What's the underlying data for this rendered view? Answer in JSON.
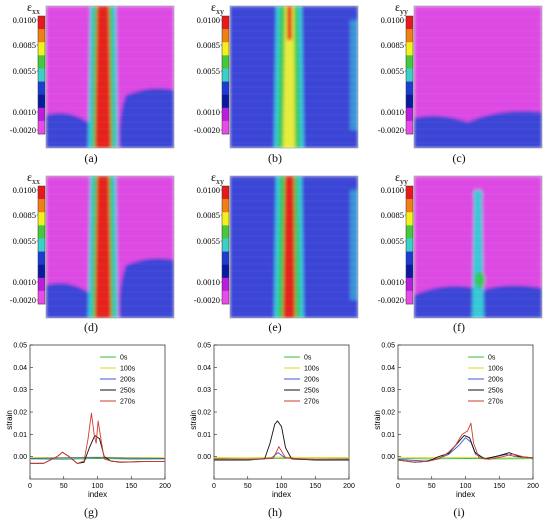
{
  "strain_maps": [
    {
      "caption": "(a)",
      "symbol": "ε",
      "subscript": "xx",
      "field": "xx",
      "stage": 1,
      "colorbar_ticks": [
        "0.0100",
        "0.0085",
        "0.0055",
        "0.0010",
        "-0.0020"
      ]
    },
    {
      "caption": "(b)",
      "symbol": "ε",
      "subscript": "xy",
      "field": "xy",
      "stage": 1,
      "colorbar_ticks": [
        "0.0100",
        "0.0085",
        "0.0055",
        "0.0010",
        "-0.0020"
      ]
    },
    {
      "caption": "(c)",
      "symbol": "ε",
      "subscript": "yy",
      "field": "yy",
      "stage": 1,
      "colorbar_ticks": [
        "0.0100",
        "0.0085",
        "0.0055",
        "0.0010",
        "-0.0020"
      ]
    },
    {
      "caption": "(d)",
      "symbol": "ε",
      "subscript": "xx",
      "field": "xx",
      "stage": 2,
      "colorbar_ticks": [
        "0.0100",
        "0.0085",
        "0.0055",
        "0.0010",
        "-0.0020"
      ]
    },
    {
      "caption": "(e)",
      "symbol": "ε",
      "subscript": "xy",
      "field": "xy",
      "stage": 2,
      "colorbar_ticks": [
        "0.0100",
        "0.0085",
        "0.0055",
        "0.0010",
        "-0.0020"
      ]
    },
    {
      "caption": "(f)",
      "symbol": "ε",
      "subscript": "yy",
      "field": "yy",
      "stage": 2,
      "colorbar_ticks": [
        "0.0100",
        "0.0085",
        "0.0055",
        "0.0010",
        "-0.0020"
      ]
    }
  ],
  "colorbar_colors": [
    "#e8191c",
    "#f07f14",
    "#f4f01e",
    "#46c83c",
    "#3ccfc8",
    "#1e3cd2",
    "#0a1aa0",
    "#b81edb",
    "#e84ce8"
  ],
  "field_colors": {
    "background_magenta": "#dd4ae3",
    "background_blue": "#3a44d6",
    "band_red": "#e5201e",
    "band_yellow": "#e8ec3a",
    "band_green": "#34c857",
    "band_cyan": "#38c8d8"
  },
  "chart_data": [
    {
      "type": "line",
      "caption": "(g)",
      "ylabel": "strain",
      "xlabel": "index",
      "xlim": [
        0,
        200
      ],
      "ylim": [
        -0.01,
        0.05
      ],
      "xticks": [
        0,
        50,
        100,
        150,
        200
      ],
      "yticks": [
        {
          "value": 0.05,
          "label": "0.05"
        },
        {
          "value": 0.04,
          "label": "0.04"
        },
        {
          "value": 0.03,
          "label": "0.03"
        },
        {
          "value": 0.02,
          "label": "0.02"
        },
        {
          "value": 0.01,
          "label": "0.01"
        },
        {
          "value": 0.0,
          "label": "0.00"
        }
      ],
      "legend_position": "top-right",
      "series": [
        {
          "name": "0s",
          "color": "#3cb83c",
          "points": [
            [
              0,
              -0.001
            ],
            [
              50,
              -0.0012
            ],
            [
              100,
              -0.0008
            ],
            [
              150,
              -0.0011
            ],
            [
              200,
              -0.001
            ]
          ]
        },
        {
          "name": "100s",
          "color": "#e3d61e",
          "points": [
            [
              0,
              -0.0004
            ],
            [
              50,
              -0.0004
            ],
            [
              100,
              -0.0002
            ],
            [
              150,
              -0.0004
            ],
            [
              200,
              -0.0004
            ]
          ]
        },
        {
          "name": "200s",
          "color": "#3a58d8",
          "points": [
            [
              0,
              -0.0008
            ],
            [
              50,
              -0.0006
            ],
            [
              100,
              -0.0004
            ],
            [
              150,
              -0.0007
            ],
            [
              200,
              -0.0008
            ]
          ]
        },
        {
          "name": "250s",
          "color": "#111111",
          "points": [
            [
              0,
              -0.003
            ],
            [
              20,
              -0.003
            ],
            [
              40,
              0.0
            ],
            [
              48,
              0.002
            ],
            [
              58,
              0.0
            ],
            [
              70,
              -0.003
            ],
            [
              80,
              -0.0025
            ],
            [
              88,
              0.004
            ],
            [
              96,
              0.0095
            ],
            [
              103,
              0.008
            ],
            [
              110,
              0.0
            ],
            [
              120,
              -0.002
            ],
            [
              135,
              -0.0025
            ],
            [
              160,
              -0.0022
            ],
            [
              200,
              -0.0022
            ]
          ]
        },
        {
          "name": "270s",
          "color": "#d23c2e",
          "points": [
            [
              0,
              -0.003
            ],
            [
              20,
              -0.003
            ],
            [
              40,
              0.0
            ],
            [
              48,
              0.002
            ],
            [
              58,
              0.0
            ],
            [
              70,
              -0.003
            ],
            [
              80,
              -0.002
            ],
            [
              86,
              0.008
            ],
            [
              91,
              0.0195
            ],
            [
              95,
              0.01
            ],
            [
              98,
              0.006
            ],
            [
              101,
              0.016
            ],
            [
              105,
              0.008
            ],
            [
              110,
              -0.001
            ],
            [
              120,
              -0.002
            ],
            [
              140,
              -0.0025
            ],
            [
              170,
              -0.0022
            ],
            [
              200,
              -0.0022
            ]
          ]
        }
      ]
    },
    {
      "type": "line",
      "caption": "(h)",
      "ylabel": "strain",
      "xlabel": "index",
      "xlim": [
        0,
        200
      ],
      "ylim": [
        -0.01,
        0.05
      ],
      "xticks": [
        0,
        50,
        100,
        150,
        200
      ],
      "yticks": [
        {
          "value": 0.05,
          "label": "0.05"
        },
        {
          "value": 0.04,
          "label": "0.04"
        },
        {
          "value": 0.03,
          "label": "0.03"
        },
        {
          "value": 0.02,
          "label": "0.02"
        },
        {
          "value": 0.01,
          "label": "0.01"
        },
        {
          "value": 0.0,
          "label": "0.00"
        }
      ],
      "legend_position": "top-right",
      "series": [
        {
          "name": "0s",
          "color": "#3cb83c",
          "points": [
            [
              0,
              -0.0008
            ],
            [
              50,
              -0.001
            ],
            [
              100,
              -0.0007
            ],
            [
              150,
              -0.001
            ],
            [
              200,
              -0.0009
            ]
          ]
        },
        {
          "name": "100s",
          "color": "#e3d61e",
          "points": [
            [
              0,
              -0.0004
            ],
            [
              50,
              -0.0005
            ],
            [
              100,
              -0.0002
            ],
            [
              150,
              -0.0004
            ],
            [
              200,
              -0.0004
            ]
          ]
        },
        {
          "name": "200s",
          "color": "#3a58d8",
          "points": [
            [
              0,
              -0.0012
            ],
            [
              60,
              -0.0012
            ],
            [
              85,
              -0.0006
            ],
            [
              95,
              0.0018
            ],
            [
              105,
              -0.0005
            ],
            [
              140,
              -0.0012
            ],
            [
              200,
              -0.0012
            ]
          ]
        },
        {
          "name": "250s",
          "color": "#111111",
          "points": [
            [
              0,
              -0.0015
            ],
            [
              50,
              -0.0015
            ],
            [
              75,
              -0.001
            ],
            [
              83,
              0.006
            ],
            [
              90,
              0.0145
            ],
            [
              94,
              0.016
            ],
            [
              100,
              0.0135
            ],
            [
              106,
              0.004
            ],
            [
              115,
              -0.001
            ],
            [
              150,
              -0.0015
            ],
            [
              200,
              -0.0015
            ]
          ]
        },
        {
          "name": "270s",
          "color": "#d23c2e",
          "points": [
            [
              0,
              -0.0012
            ],
            [
              60,
              -0.0012
            ],
            [
              88,
              -0.0008
            ],
            [
              96,
              0.0045
            ],
            [
              100,
              0.0025
            ],
            [
              106,
              -0.0005
            ],
            [
              140,
              -0.0012
            ],
            [
              200,
              -0.0012
            ]
          ]
        }
      ]
    },
    {
      "type": "line",
      "caption": "(i)",
      "ylabel": "strain",
      "xlabel": "index",
      "xlim": [
        0,
        200
      ],
      "ylim": [
        -0.01,
        0.05
      ],
      "xticks": [
        0,
        50,
        100,
        150,
        200
      ],
      "yticks": [
        {
          "value": 0.05,
          "label": "0.05"
        },
        {
          "value": 0.04,
          "label": "0.04"
        },
        {
          "value": 0.03,
          "label": "0.03"
        },
        {
          "value": 0.02,
          "label": "0.02"
        },
        {
          "value": 0.01,
          "label": "0.01"
        },
        {
          "value": 0.0,
          "label": "0.00"
        }
      ],
      "legend_position": "top-right",
      "series": [
        {
          "name": "0s",
          "color": "#3cb83c",
          "points": [
            [
              0,
              -0.0008
            ],
            [
              50,
              -0.001
            ],
            [
              100,
              -0.0008
            ],
            [
              150,
              -0.001
            ],
            [
              200,
              -0.0009
            ]
          ]
        },
        {
          "name": "100s",
          "color": "#e3d61e",
          "points": [
            [
              0,
              -0.0005
            ],
            [
              50,
              -0.0004
            ],
            [
              100,
              -0.0003
            ],
            [
              150,
              -0.0005
            ],
            [
              200,
              -0.0005
            ]
          ]
        },
        {
          "name": "200s",
          "color": "#3a58d8",
          "points": [
            [
              0,
              -0.0012
            ],
            [
              40,
              -0.002
            ],
            [
              60,
              -0.0008
            ],
            [
              75,
              0.001
            ],
            [
              90,
              0.005
            ],
            [
              100,
              0.0085
            ],
            [
              108,
              0.0065
            ],
            [
              115,
              0.001
            ],
            [
              130,
              -0.001
            ],
            [
              160,
              0.001
            ],
            [
              175,
              0.0
            ],
            [
              200,
              -0.0005
            ]
          ]
        },
        {
          "name": "250s",
          "color": "#111111",
          "points": [
            [
              0,
              -0.0015
            ],
            [
              25,
              -0.0025
            ],
            [
              45,
              -0.002
            ],
            [
              60,
              0.0
            ],
            [
              75,
              0.0015
            ],
            [
              88,
              0.006
            ],
            [
              98,
              0.0095
            ],
            [
              106,
              0.0085
            ],
            [
              114,
              0.002
            ],
            [
              128,
              -0.001
            ],
            [
              150,
              0.0005
            ],
            [
              165,
              0.0018
            ],
            [
              180,
              0.0
            ],
            [
              200,
              -0.0005
            ]
          ]
        },
        {
          "name": "270s",
          "color": "#d23c2e",
          "points": [
            [
              0,
              -0.0015
            ],
            [
              25,
              -0.0025
            ],
            [
              45,
              -0.002
            ],
            [
              60,
              -0.001
            ],
            [
              75,
              0.002
            ],
            [
              85,
              0.005
            ],
            [
              95,
              0.01
            ],
            [
              103,
              0.0115
            ],
            [
              108,
              0.015
            ],
            [
              112,
              0.006
            ],
            [
              120,
              -0.0005
            ],
            [
              135,
              -0.0012
            ],
            [
              155,
              0.0
            ],
            [
              170,
              0.0012
            ],
            [
              185,
              0.0
            ],
            [
              200,
              -0.0005
            ]
          ]
        }
      ]
    }
  ]
}
